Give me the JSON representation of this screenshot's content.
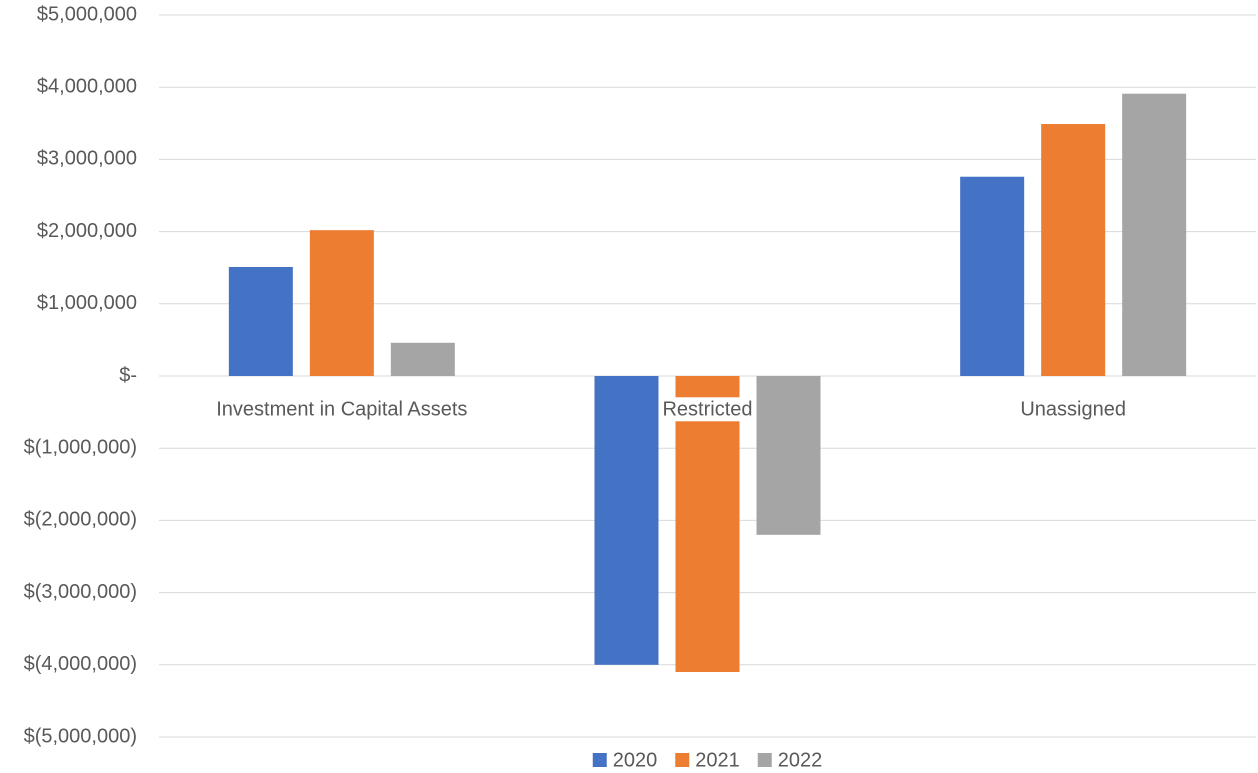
{
  "chart_data": {
    "type": "bar",
    "categories": [
      "Investment in Capital Assets",
      "Restricted",
      "Unassigned"
    ],
    "series": [
      {
        "name": "2020",
        "color": "#4472c4",
        "values": [
          1510000,
          -4000000,
          2760000
        ]
      },
      {
        "name": "2021",
        "color": "#ed7d31",
        "values": [
          2020000,
          -4100000,
          3490000
        ]
      },
      {
        "name": "2022",
        "color": "#a5a5a5",
        "values": [
          460000,
          -2200000,
          3910000
        ]
      }
    ],
    "ylim": [
      -5000000,
      5000000
    ],
    "yticks": [
      {
        "value": -5000000,
        "label": "$(5,000,000)"
      },
      {
        "value": -4000000,
        "label": "$(4,000,000)"
      },
      {
        "value": -3000000,
        "label": "$(3,000,000)"
      },
      {
        "value": -2000000,
        "label": "$(2,000,000)"
      },
      {
        "value": -1000000,
        "label": "$(1,000,000)"
      },
      {
        "value": 0,
        "label": "$-"
      },
      {
        "value": 1000000,
        "label": "$1,000,000"
      },
      {
        "value": 2000000,
        "label": "$2,000,000"
      },
      {
        "value": 3000000,
        "label": "$3,000,000"
      },
      {
        "value": 4000000,
        "label": "$4,000,000"
      },
      {
        "value": 5000000,
        "label": "$5,000,000"
      }
    ],
    "grid": true,
    "legend": "bottom"
  }
}
